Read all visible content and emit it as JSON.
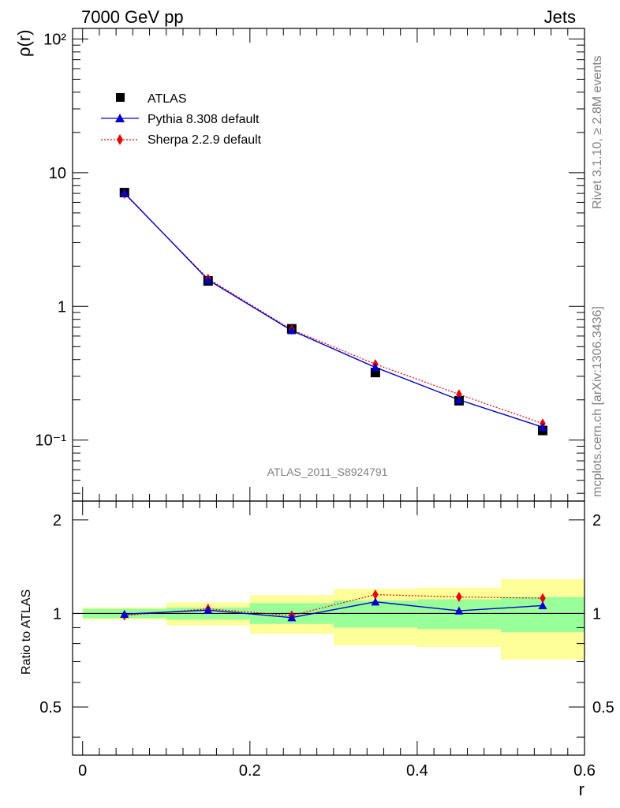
{
  "header": {
    "left_label": "7000 GeV pp",
    "right_label": "Jets"
  },
  "side_text": {
    "rivet": "Rivet 3.1.10, ≥ 2.8M events",
    "mcplots": "mcplots.cern.ch [arXiv:1306.3436]"
  },
  "analysis_label": "ATLAS_2011_S8924791",
  "legend": {
    "atlas": "ATLAS",
    "pythia": "Pythia 8.308 default",
    "sherpa": "Sherpa 2.2.9 default"
  },
  "colors": {
    "data": "#000000",
    "pythia": "#0000cc",
    "sherpa": "#ee0000",
    "band_inner": "#99ff99",
    "band_outer": "#ffff99"
  },
  "chart_data": {
    "type": "line",
    "xlabel": "r",
    "ylabel_main": "ρ(r)",
    "ylabel_ratio": "Ratio to ATLAS",
    "x_range": [
      -0.012,
      0.6
    ],
    "main_ylim": [
      0.035,
      120
    ],
    "main_yscale": "log",
    "ratio_ylim": [
      0.35,
      2.3
    ],
    "ratio_yscale": "log",
    "x_tick_labels": [
      "0",
      "0.2",
      "0.4",
      "0.6"
    ],
    "main_tick_labels": {
      "100": "10²",
      "10": "10",
      "1": "1",
      "0.1": "10⁻¹"
    },
    "ratio_tick_labels": {
      "2": "2",
      "1": "1",
      "0.5": "0.5"
    },
    "bins": [
      [
        0.0,
        0.1
      ],
      [
        0.1,
        0.2
      ],
      [
        0.2,
        0.3
      ],
      [
        0.3,
        0.4
      ],
      [
        0.4,
        0.5
      ],
      [
        0.5,
        0.6
      ]
    ],
    "x": [
      0.05,
      0.15,
      0.25,
      0.35,
      0.45,
      0.55
    ],
    "series": [
      {
        "name": "ATLAS",
        "values": [
          7.1,
          1.55,
          0.68,
          0.32,
          0.197,
          0.118
        ]
      },
      {
        "name": "Pythia 8.308 default",
        "values": [
          7.05,
          1.58,
          0.66,
          0.35,
          0.2,
          0.125
        ]
      },
      {
        "name": "Sherpa 2.2.9 default",
        "values": [
          6.95,
          1.61,
          0.67,
          0.37,
          0.22,
          0.133
        ]
      }
    ],
    "ratio_series": [
      {
        "name": "Pythia 8.308 default",
        "values": [
          0.995,
          1.025,
          0.97,
          1.09,
          1.02,
          1.06
        ]
      },
      {
        "name": "Sherpa 2.2.9 default",
        "values": [
          0.985,
          1.035,
          0.985,
          1.15,
          1.13,
          1.12
        ]
      }
    ],
    "band_inner": [
      [
        0.965,
        1.035
      ],
      [
        0.955,
        1.045
      ],
      [
        0.925,
        1.08
      ],
      [
        0.9,
        1.1
      ],
      [
        0.89,
        1.11
      ],
      [
        0.87,
        1.13
      ]
    ],
    "band_outer": [
      [
        0.955,
        1.045
      ],
      [
        0.915,
        1.085
      ],
      [
        0.86,
        1.145
      ],
      [
        0.79,
        1.2
      ],
      [
        0.78,
        1.21
      ],
      [
        0.71,
        1.29
      ]
    ],
    "grid": false,
    "legend_position": "top-left"
  }
}
